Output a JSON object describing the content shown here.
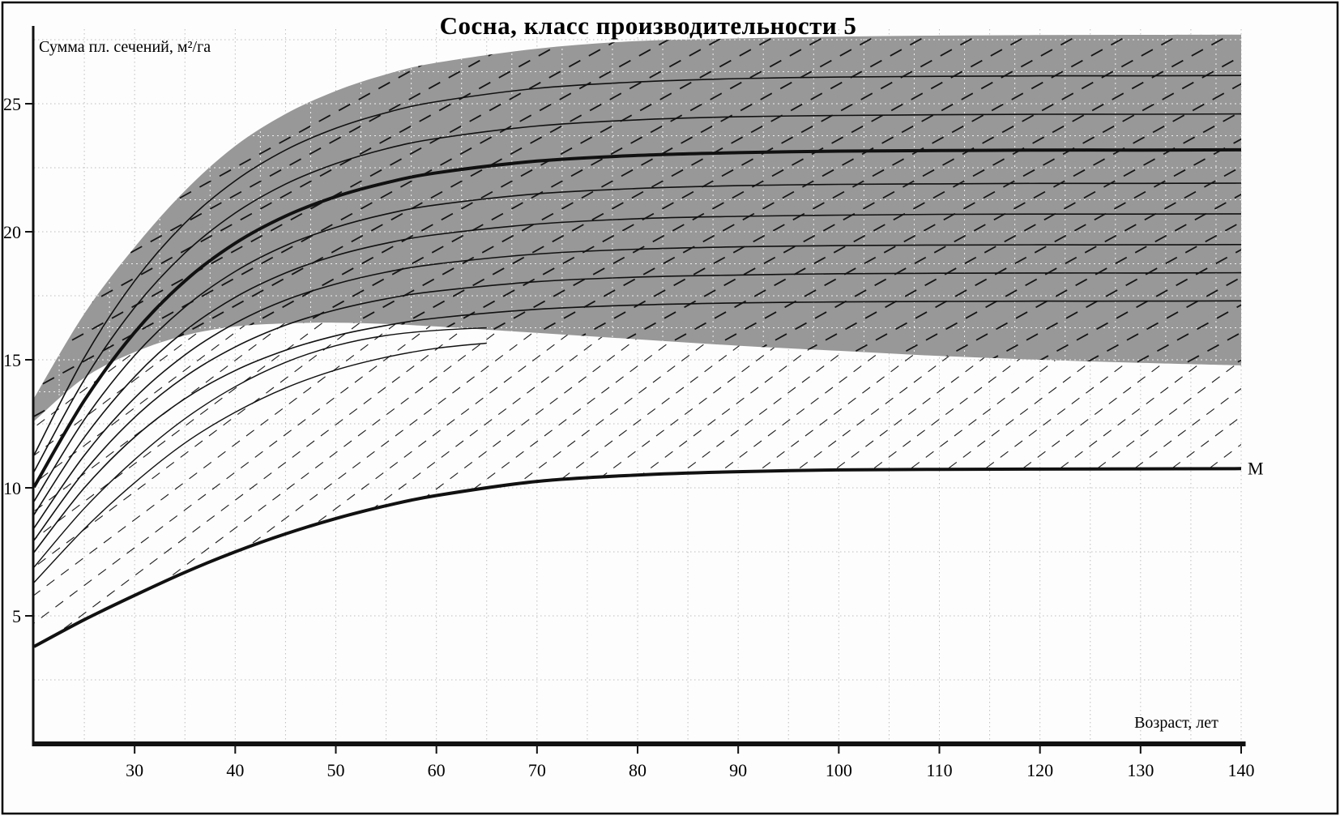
{
  "title": "Сосна, класс производительности 5",
  "chart_data": {
    "type": "line",
    "title": "Сосна, класс производительности 5",
    "xlabel": "Возраст, лет",
    "ylabel": "Сумма пл. сечений, м²/га",
    "xlim": [
      20,
      140
    ],
    "ylim": [
      0,
      28
    ],
    "x_ticks": [
      30,
      40,
      50,
      60,
      70,
      80,
      90,
      100,
      110,
      120,
      130,
      140
    ],
    "y_ticks": [
      5,
      10,
      15,
      20,
      25
    ],
    "grid": "dotted",
    "legend_position": "none",
    "x": [
      20,
      25,
      30,
      35,
      40,
      45,
      50,
      55,
      60,
      70,
      80,
      90,
      100,
      110,
      120,
      130,
      140
    ],
    "band": {
      "name": "shaded-density-band",
      "fill": "#989898",
      "top": [
        13.5,
        16.8,
        19.4,
        21.6,
        23.35,
        24.6,
        25.5,
        26.15,
        26.6,
        27.15,
        27.45,
        27.55,
        27.62,
        27.66,
        27.68,
        27.69,
        27.7
      ],
      "bottom": [
        12.6,
        14.3,
        15.3,
        15.95,
        16.3,
        16.42,
        16.45,
        16.4,
        16.3,
        16.05,
        15.8,
        15.55,
        15.35,
        15.15,
        15.0,
        14.88,
        14.78
      ]
    },
    "series": [
      {
        "name": "density-curve-1",
        "style": "thin",
        "values": [
          11.28,
          15.09,
          18.08,
          20.34,
          21.99,
          23.19,
          24.04,
          24.65,
          25.08,
          25.6,
          25.85,
          25.98,
          26.04,
          26.07,
          26.09,
          26.09,
          26.1
        ]
      },
      {
        "name": "density-curve-2",
        "style": "thin",
        "values": [
          10.63,
          14.22,
          17.04,
          19.17,
          20.73,
          21.86,
          22.66,
          23.24,
          23.64,
          24.13,
          24.37,
          24.49,
          24.54,
          24.57,
          24.59,
          24.59,
          24.6
        ]
      },
      {
        "name": "density-curve-main",
        "style": "thick",
        "values": [
          10.03,
          13.41,
          16.07,
          18.08,
          19.55,
          20.61,
          21.37,
          21.91,
          22.3,
          22.76,
          22.98,
          23.09,
          23.15,
          23.17,
          23.19,
          23.19,
          23.2
        ]
      },
      {
        "name": "density-curve-3",
        "style": "thin",
        "values": [
          9.47,
          12.66,
          15.17,
          17.06,
          18.45,
          19.46,
          20.17,
          20.69,
          21.05,
          21.48,
          21.69,
          21.8,
          21.85,
          21.87,
          21.89,
          21.89,
          21.9
        ]
      },
      {
        "name": "density-curve-4",
        "style": "thin",
        "values": [
          8.95,
          11.97,
          14.34,
          16.13,
          17.44,
          18.39,
          19.07,
          19.55,
          19.89,
          20.3,
          20.51,
          20.6,
          20.65,
          20.68,
          20.69,
          20.69,
          20.7
        ]
      },
      {
        "name": "density-curve-5",
        "style": "thin",
        "values": [
          8.43,
          11.27,
          13.51,
          15.19,
          16.43,
          17.33,
          17.96,
          18.42,
          18.74,
          19.13,
          19.32,
          19.41,
          19.46,
          19.48,
          19.49,
          19.49,
          19.5
        ]
      },
      {
        "name": "density-curve-6",
        "style": "thin",
        "values": [
          7.95,
          10.64,
          12.75,
          14.34,
          15.5,
          16.35,
          16.95,
          17.38,
          17.68,
          18.05,
          18.23,
          18.31,
          18.36,
          18.38,
          18.39,
          18.39,
          18.4
        ]
      },
      {
        "name": "density-curve-7",
        "style": "thin",
        "values": [
          7.48,
          10.0,
          11.98,
          13.48,
          14.58,
          15.37,
          15.94,
          16.34,
          16.63,
          16.97,
          17.14,
          17.22,
          17.26,
          17.28,
          17.29,
          17.29,
          17.3
        ]
      }
    ],
    "partial_series": [
      {
        "name": "lower-thin-curve-1",
        "x": [
          20,
          25,
          30,
          35,
          40,
          45,
          50,
          55,
          60,
          65
        ],
        "values": [
          6.9,
          9.2,
          11.1,
          12.7,
          13.95,
          14.9,
          15.55,
          15.95,
          16.15,
          16.25
        ]
      },
      {
        "name": "lower-thin-curve-2",
        "x": [
          20,
          25,
          30,
          35,
          40,
          45,
          50,
          55,
          60,
          65
        ],
        "values": [
          6.3,
          8.4,
          10.2,
          11.75,
          12.95,
          13.9,
          14.6,
          15.1,
          15.45,
          15.65
        ]
      }
    ],
    "m_curve": {
      "name": "minimum-density-curve",
      "label": "М",
      "style": "thick",
      "values": [
        3.8,
        4.85,
        5.8,
        6.7,
        7.5,
        8.2,
        8.8,
        9.3,
        9.7,
        10.25,
        10.5,
        10.63,
        10.7,
        10.72,
        10.73,
        10.74,
        10.75
      ]
    },
    "hatching": {
      "band_hatch": "dashed diagonal lines rising left-to-right inside shaded band",
      "white_hatch": "dashed diagonal thinning trajectories between band bottom and M curve"
    },
    "colors": {
      "band_fill": "#989898",
      "curve": "#111111",
      "grid": "#bdbdbd",
      "band_grid": "#ffffff",
      "axis": "#111111",
      "background": "#fdfdfd"
    }
  }
}
